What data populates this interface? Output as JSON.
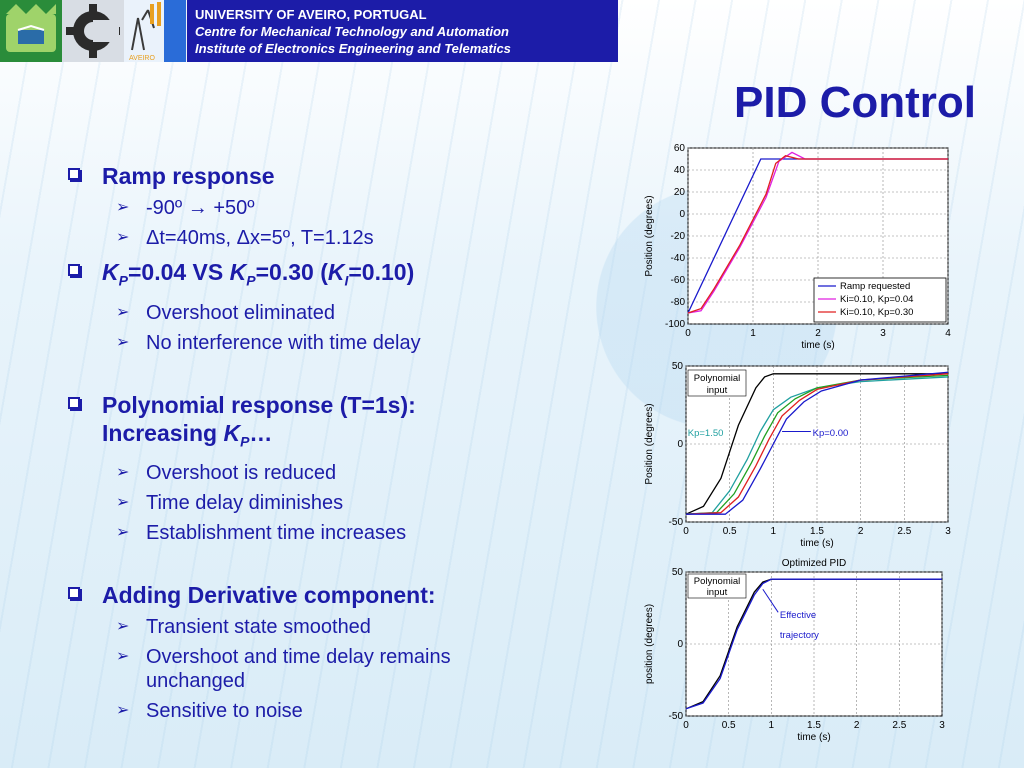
{
  "header": {
    "line1": "UNIVERSITY OF AVEIRO, PORTUGAL",
    "line2": "Centre for Mechanical Technology and Automation",
    "line3": "Institute of Electronics Engineering and Telematics"
  },
  "title": "PID Control",
  "bullets": [
    {
      "label": "Ramp response",
      "subs": [
        "-90º → +50º",
        "Δt=40ms, Δx=5º, T=1.12s"
      ]
    },
    {
      "label_parts": [
        "K",
        "P",
        "=0.04 VS ",
        "K",
        "P",
        "=0.30 (",
        "K",
        "I",
        "=0.10)"
      ],
      "subs": [
        "Overshoot eliminated",
        "No interference with time delay"
      ]
    },
    {
      "label_line1": "Polynomial  response (T=1s):",
      "label_line2": "Increasing ",
      "label_k": "K",
      "label_sub": "P",
      "label_tail": "…",
      "subs": [
        "Overshoot is reduced",
        "Time delay diminishes",
        "Establishment time increases"
      ]
    },
    {
      "label": "Adding Derivative component:",
      "subs": [
        "Transient state smoothed",
        "Overshoot and time delay remains",
        "unchanged",
        "Sensitive to noise"
      ]
    }
  ],
  "chart_data": [
    {
      "type": "line",
      "xlabel": "time (s)",
      "ylabel": "Position (degrees)",
      "xlim": [
        0,
        4
      ],
      "ylim": [
        -100,
        60
      ],
      "xticks": [
        "0",
        "1",
        "2",
        "3",
        "4"
      ],
      "yticks": [
        "60",
        "40",
        "20",
        "0",
        "-20",
        "-40",
        "-60",
        "-80",
        "-100"
      ],
      "grid": true,
      "legend": "bottom-right",
      "series": [
        {
          "name": "Ramp requested",
          "color": "#1a1acc",
          "x": [
            0,
            1.12,
            4
          ],
          "y": [
            -90,
            50,
            50
          ]
        },
        {
          "name": "Ki=0.10, Kp=0.04",
          "color": "#e020e0",
          "x": [
            0,
            0.2,
            0.4,
            0.8,
            1.2,
            1.4,
            1.6,
            1.8,
            4
          ],
          "y": [
            -90,
            -88,
            -70,
            -30,
            15,
            48,
            56,
            50,
            50
          ]
        },
        {
          "name": "Ki=0.10, Kp=0.30",
          "color": "#e02020",
          "x": [
            0,
            0.2,
            0.4,
            0.8,
            1.2,
            1.35,
            1.5,
            1.7,
            4
          ],
          "y": [
            -90,
            -86,
            -68,
            -28,
            18,
            46,
            53,
            50,
            50
          ]
        }
      ]
    },
    {
      "type": "line",
      "xlabel": "time (s)",
      "ylabel": "Position (degrees)",
      "xlim": [
        0,
        3
      ],
      "ylim": [
        -50,
        50
      ],
      "xticks": [
        "0",
        "0.5",
        "1",
        "1.5",
        "2",
        "2.5",
        "3"
      ],
      "yticks": [
        "50",
        "0",
        "-50"
      ],
      "grid": true,
      "annotations": [
        "Polynomial",
        "input",
        "Kp=1.50",
        "Kp=0.00"
      ],
      "series": [
        {
          "name": "Polynomial input",
          "color": "#000000",
          "x": [
            0,
            0.2,
            0.4,
            0.5,
            0.6,
            0.8,
            0.9,
            1.0,
            3
          ],
          "y": [
            -45,
            -40,
            -22,
            -5,
            12,
            36,
            43,
            45,
            45
          ]
        },
        {
          "color": "#20a0a0",
          "x": [
            0,
            0.3,
            0.5,
            0.7,
            0.85,
            1.0,
            1.2,
            1.5,
            2.0,
            3
          ],
          "y": [
            -45,
            -44,
            -30,
            -10,
            8,
            22,
            30,
            36,
            40,
            43
          ]
        },
        {
          "color": "#20a020",
          "x": [
            0,
            0.35,
            0.55,
            0.75,
            0.9,
            1.05,
            1.25,
            1.5,
            2.0,
            3
          ],
          "y": [
            -45,
            -44,
            -32,
            -12,
            5,
            20,
            29,
            36,
            41,
            44
          ]
        },
        {
          "color": "#e02020",
          "x": [
            0,
            0.4,
            0.6,
            0.8,
            0.95,
            1.1,
            1.3,
            1.5,
            2.0,
            3
          ],
          "y": [
            -45,
            -44,
            -34,
            -14,
            3,
            18,
            28,
            35,
            41,
            45
          ]
        },
        {
          "name": "Kp=0.00",
          "color": "#1a1acc",
          "x": [
            0,
            0.45,
            0.65,
            0.85,
            1.0,
            1.15,
            1.35,
            1.55,
            2.0,
            3
          ],
          "y": [
            -45,
            -45,
            -36,
            -16,
            0,
            16,
            27,
            34,
            41,
            46
          ]
        }
      ]
    },
    {
      "type": "line",
      "title": "Optimized PID",
      "xlabel": "time (s)",
      "ylabel": "position (degrees)",
      "xlim": [
        0,
        3
      ],
      "ylim": [
        -50,
        50
      ],
      "xticks": [
        "0",
        "0.5",
        "1",
        "1.5",
        "2",
        "2.5",
        "3"
      ],
      "yticks": [
        "50",
        "0",
        "-50"
      ],
      "grid": true,
      "annotations": [
        "Polynomial",
        "input",
        "Effective",
        "trajectory"
      ],
      "series": [
        {
          "name": "Polynomial input",
          "color": "#000000",
          "x": [
            0,
            0.2,
            0.4,
            0.5,
            0.6,
            0.8,
            0.9,
            1.0,
            3
          ],
          "y": [
            -45,
            -40,
            -22,
            -5,
            12,
            36,
            43,
            45,
            45
          ]
        },
        {
          "name": "Effective trajectory",
          "color": "#1a1acc",
          "x": [
            0,
            0.2,
            0.4,
            0.5,
            0.6,
            0.8,
            0.9,
            1.0,
            3
          ],
          "y": [
            -45,
            -41,
            -24,
            -7,
            10,
            34,
            42,
            45,
            45
          ]
        }
      ]
    }
  ]
}
